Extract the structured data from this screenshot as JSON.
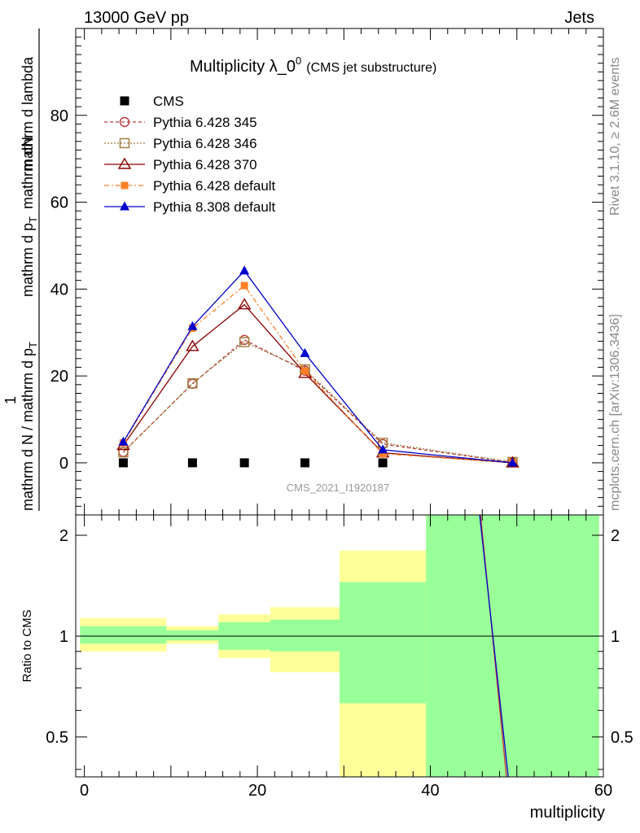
{
  "header": {
    "left": "13000 GeV pp",
    "right": "Jets",
    "side_top": "Rivet 3.1.10, ≥ 2.6M events",
    "side_bottom": "mcplots.cern.ch [arXiv:1306.3436]"
  },
  "chart_data": [
    {
      "type": "line",
      "title_main": "Multiplicity λ_0",
      "title_sup": "0",
      "title_sub": "(CMS jet substructure)",
      "ylabel_numerator": "1",
      "ylabel_numerator_part1": "mathrm dN",
      "ylabel_numerator_part2": "mathrm d p",
      "ylabel_numerator_part2_sub": "T",
      "ylabel_numerator_part3": " mathrm d lambda",
      "ylabel_denominator": "mathrm d N / mathrm d p",
      "ylabel_denominator_sub": "T",
      "ylabel_denominator_tail": "mathrm d N",
      "watermark": "CMS_2021_I1920187",
      "ylim": [
        -12,
        100
      ],
      "xlim": [
        -1,
        60
      ],
      "yticks": [
        "0",
        "20",
        "40",
        "60",
        "80"
      ],
      "legend_position": "top-left",
      "x": [
        4.5,
        12.5,
        18.5,
        25.5,
        34.5,
        49.5
      ],
      "series": [
        {
          "name": "CMS",
          "color": "#000000",
          "marker": "square",
          "dash": "none",
          "values": [
            0,
            0,
            0,
            0,
            0,
            null
          ]
        },
        {
          "name": "Pythia 6.428 345",
          "color": "#b83a3a",
          "marker": "circle-open",
          "dash": "4,3",
          "values": [
            2.5,
            18.2,
            28.3,
            21.2,
            4.3,
            0.1
          ]
        },
        {
          "name": "Pythia 6.428 346",
          "color": "#a07a3a",
          "marker": "square-open",
          "dash": "2,2",
          "values": [
            2.4,
            18.3,
            27.8,
            21.5,
            4.6,
            0.2
          ]
        },
        {
          "name": "Pythia 6.428 370",
          "color": "#8b0000",
          "marker": "triangle-open",
          "dash": "none",
          "values": [
            4.0,
            26.8,
            36.4,
            20.6,
            2.3,
            0.0
          ]
        },
        {
          "name": "Pythia 6.428 default",
          "color": "#ff7f27",
          "marker": "square-filled",
          "dash": "6,3,2,3",
          "values": [
            4.6,
            31.0,
            40.8,
            21.1,
            2.1,
            0.0
          ]
        },
        {
          "name": "Pythia 8.308 default",
          "color": "#0000cc",
          "marker": "triangle-filled",
          "dash": "none",
          "values": [
            4.8,
            31.4,
            44.2,
            25.2,
            3.0,
            0.0
          ]
        }
      ]
    },
    {
      "type": "area",
      "ylabel": "Ratio to CMS",
      "xlabel": "multiplicity",
      "ylim": [
        0.38,
        2.3
      ],
      "xlim": [
        -1,
        60
      ],
      "xticks": [
        "0",
        "20",
        "40",
        "60"
      ],
      "yticks": [
        "0.5",
        "1",
        "2"
      ],
      "reference_line": 1,
      "bands": [
        {
          "x0": -0.5,
          "x1": 9.5,
          "green": [
            0.95,
            1.07
          ],
          "yellow": [
            0.9,
            1.13
          ]
        },
        {
          "x0": 9.5,
          "x1": 15.5,
          "green": [
            0.97,
            1.04
          ],
          "yellow": [
            0.95,
            1.07
          ]
        },
        {
          "x0": 15.5,
          "x1": 21.5,
          "green": [
            0.91,
            1.1
          ],
          "yellow": [
            0.86,
            1.16
          ]
        },
        {
          "x0": 21.5,
          "x1": 29.5,
          "green": [
            0.9,
            1.12
          ],
          "yellow": [
            0.78,
            1.22
          ]
        },
        {
          "x0": 29.5,
          "x1": 39.5,
          "green": [
            0.63,
            1.45
          ],
          "yellow": [
            0.38,
            1.8
          ]
        },
        {
          "x0": 39.5,
          "x1": 59.5,
          "green": [
            0.38,
            2.3
          ],
          "yellow": [
            0.38,
            2.3
          ]
        }
      ],
      "band_colors": {
        "green": "#99ff99",
        "yellow": "#ffff99"
      },
      "ratio_lines": [
        {
          "color": "#cc3333",
          "points": [
            [
              45.8,
              2.3
            ],
            [
              48.8,
              0.38
            ]
          ]
        },
        {
          "color": "#0000cc",
          "points": [
            [
              45.7,
              2.3
            ],
            [
              49.0,
              0.38
            ]
          ]
        }
      ]
    }
  ]
}
